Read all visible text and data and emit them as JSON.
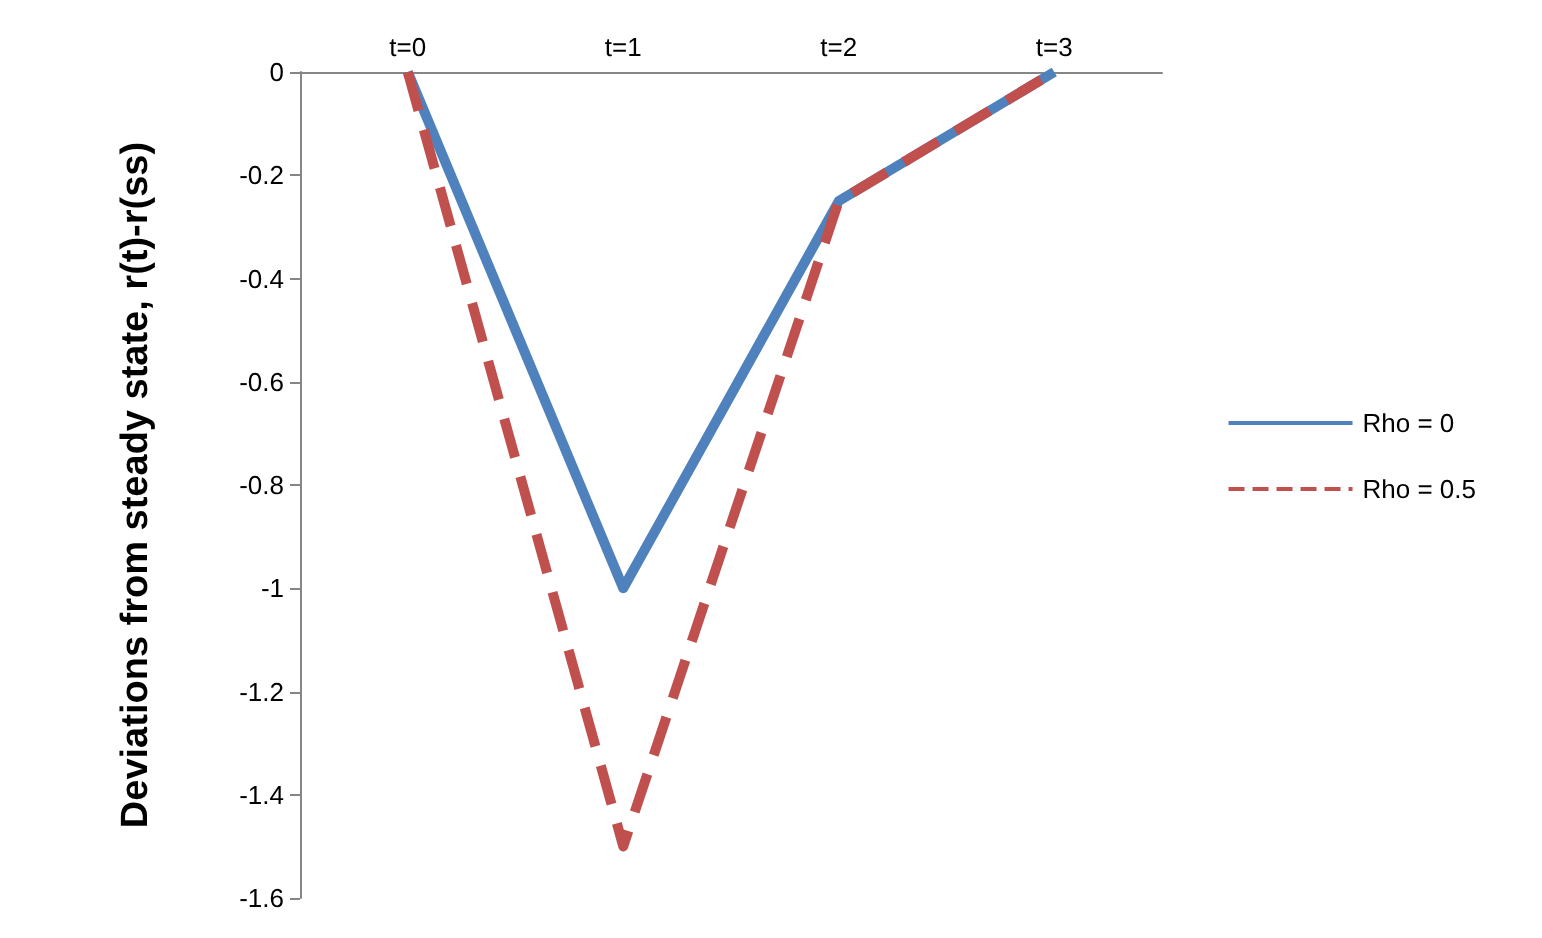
{
  "chart_data": {
    "type": "line",
    "ylabel": "Deviations from steady state, r(t)-r(ss)",
    "categories": [
      "t=0",
      "t=1",
      "t=2",
      "t=3"
    ],
    "series": [
      {
        "name": "Rho = 0",
        "color": "#4f81bd",
        "values": [
          0,
          -1,
          -0.25,
          0
        ],
        "line_style": "solid"
      },
      {
        "name": "Rho = 0.5",
        "color": "#c0504d",
        "values": [
          0,
          -1.5,
          -0.25,
          0
        ],
        "line_style": "dashed"
      }
    ],
    "ylim": [
      -1.6,
      0
    ],
    "yticks": [
      0,
      -0.2,
      -0.4,
      -0.6,
      -0.8,
      -1,
      -1.2,
      -1.4,
      -1.6
    ],
    "grid": false,
    "legend": "right",
    "marker": "none"
  }
}
